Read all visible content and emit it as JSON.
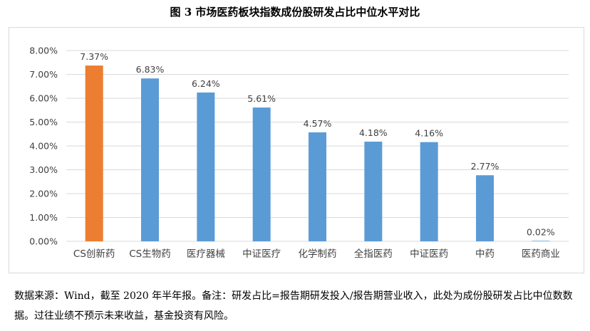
{
  "title": "图 3  市场医药板块指数成份股研发占比中位水平对比",
  "note": "数据来源：Wind，截至 2020 年半年报。备注：研发占比=报告期研发投入/报告期营业收入，此处为成份股研发占比中位数数据。过往业绩不预示未来收益，基金投资有风险。",
  "colors": {
    "highlight": "#ed7d31",
    "bar": "#5b9bd5",
    "grid": "#d9d9d9",
    "text": "#404040"
  },
  "chart_data": {
    "type": "bar",
    "title": "图 3  市场医药板块指数成份股研发占比中位水平对比",
    "categories": [
      "CS创新药",
      "CS生物药",
      "医疗器械",
      "中证医疗",
      "化学制药",
      "全指医药",
      "中证医药",
      "中药",
      "医药商业"
    ],
    "values": [
      7.37,
      6.83,
      6.24,
      5.61,
      4.57,
      4.18,
      4.16,
      2.77,
      0.02
    ],
    "value_labels": [
      "7.37%",
      "6.83%",
      "6.24%",
      "5.61%",
      "4.57%",
      "4.18%",
      "4.16%",
      "2.77%",
      "0.02%"
    ],
    "highlight_index": 0,
    "ylim": [
      0,
      8
    ],
    "yticks": [
      "0.00%",
      "1.00%",
      "2.00%",
      "3.00%",
      "4.00%",
      "5.00%",
      "6.00%",
      "7.00%",
      "8.00%"
    ],
    "grid": true,
    "legend": "none",
    "xlabel": "",
    "ylabel": ""
  }
}
